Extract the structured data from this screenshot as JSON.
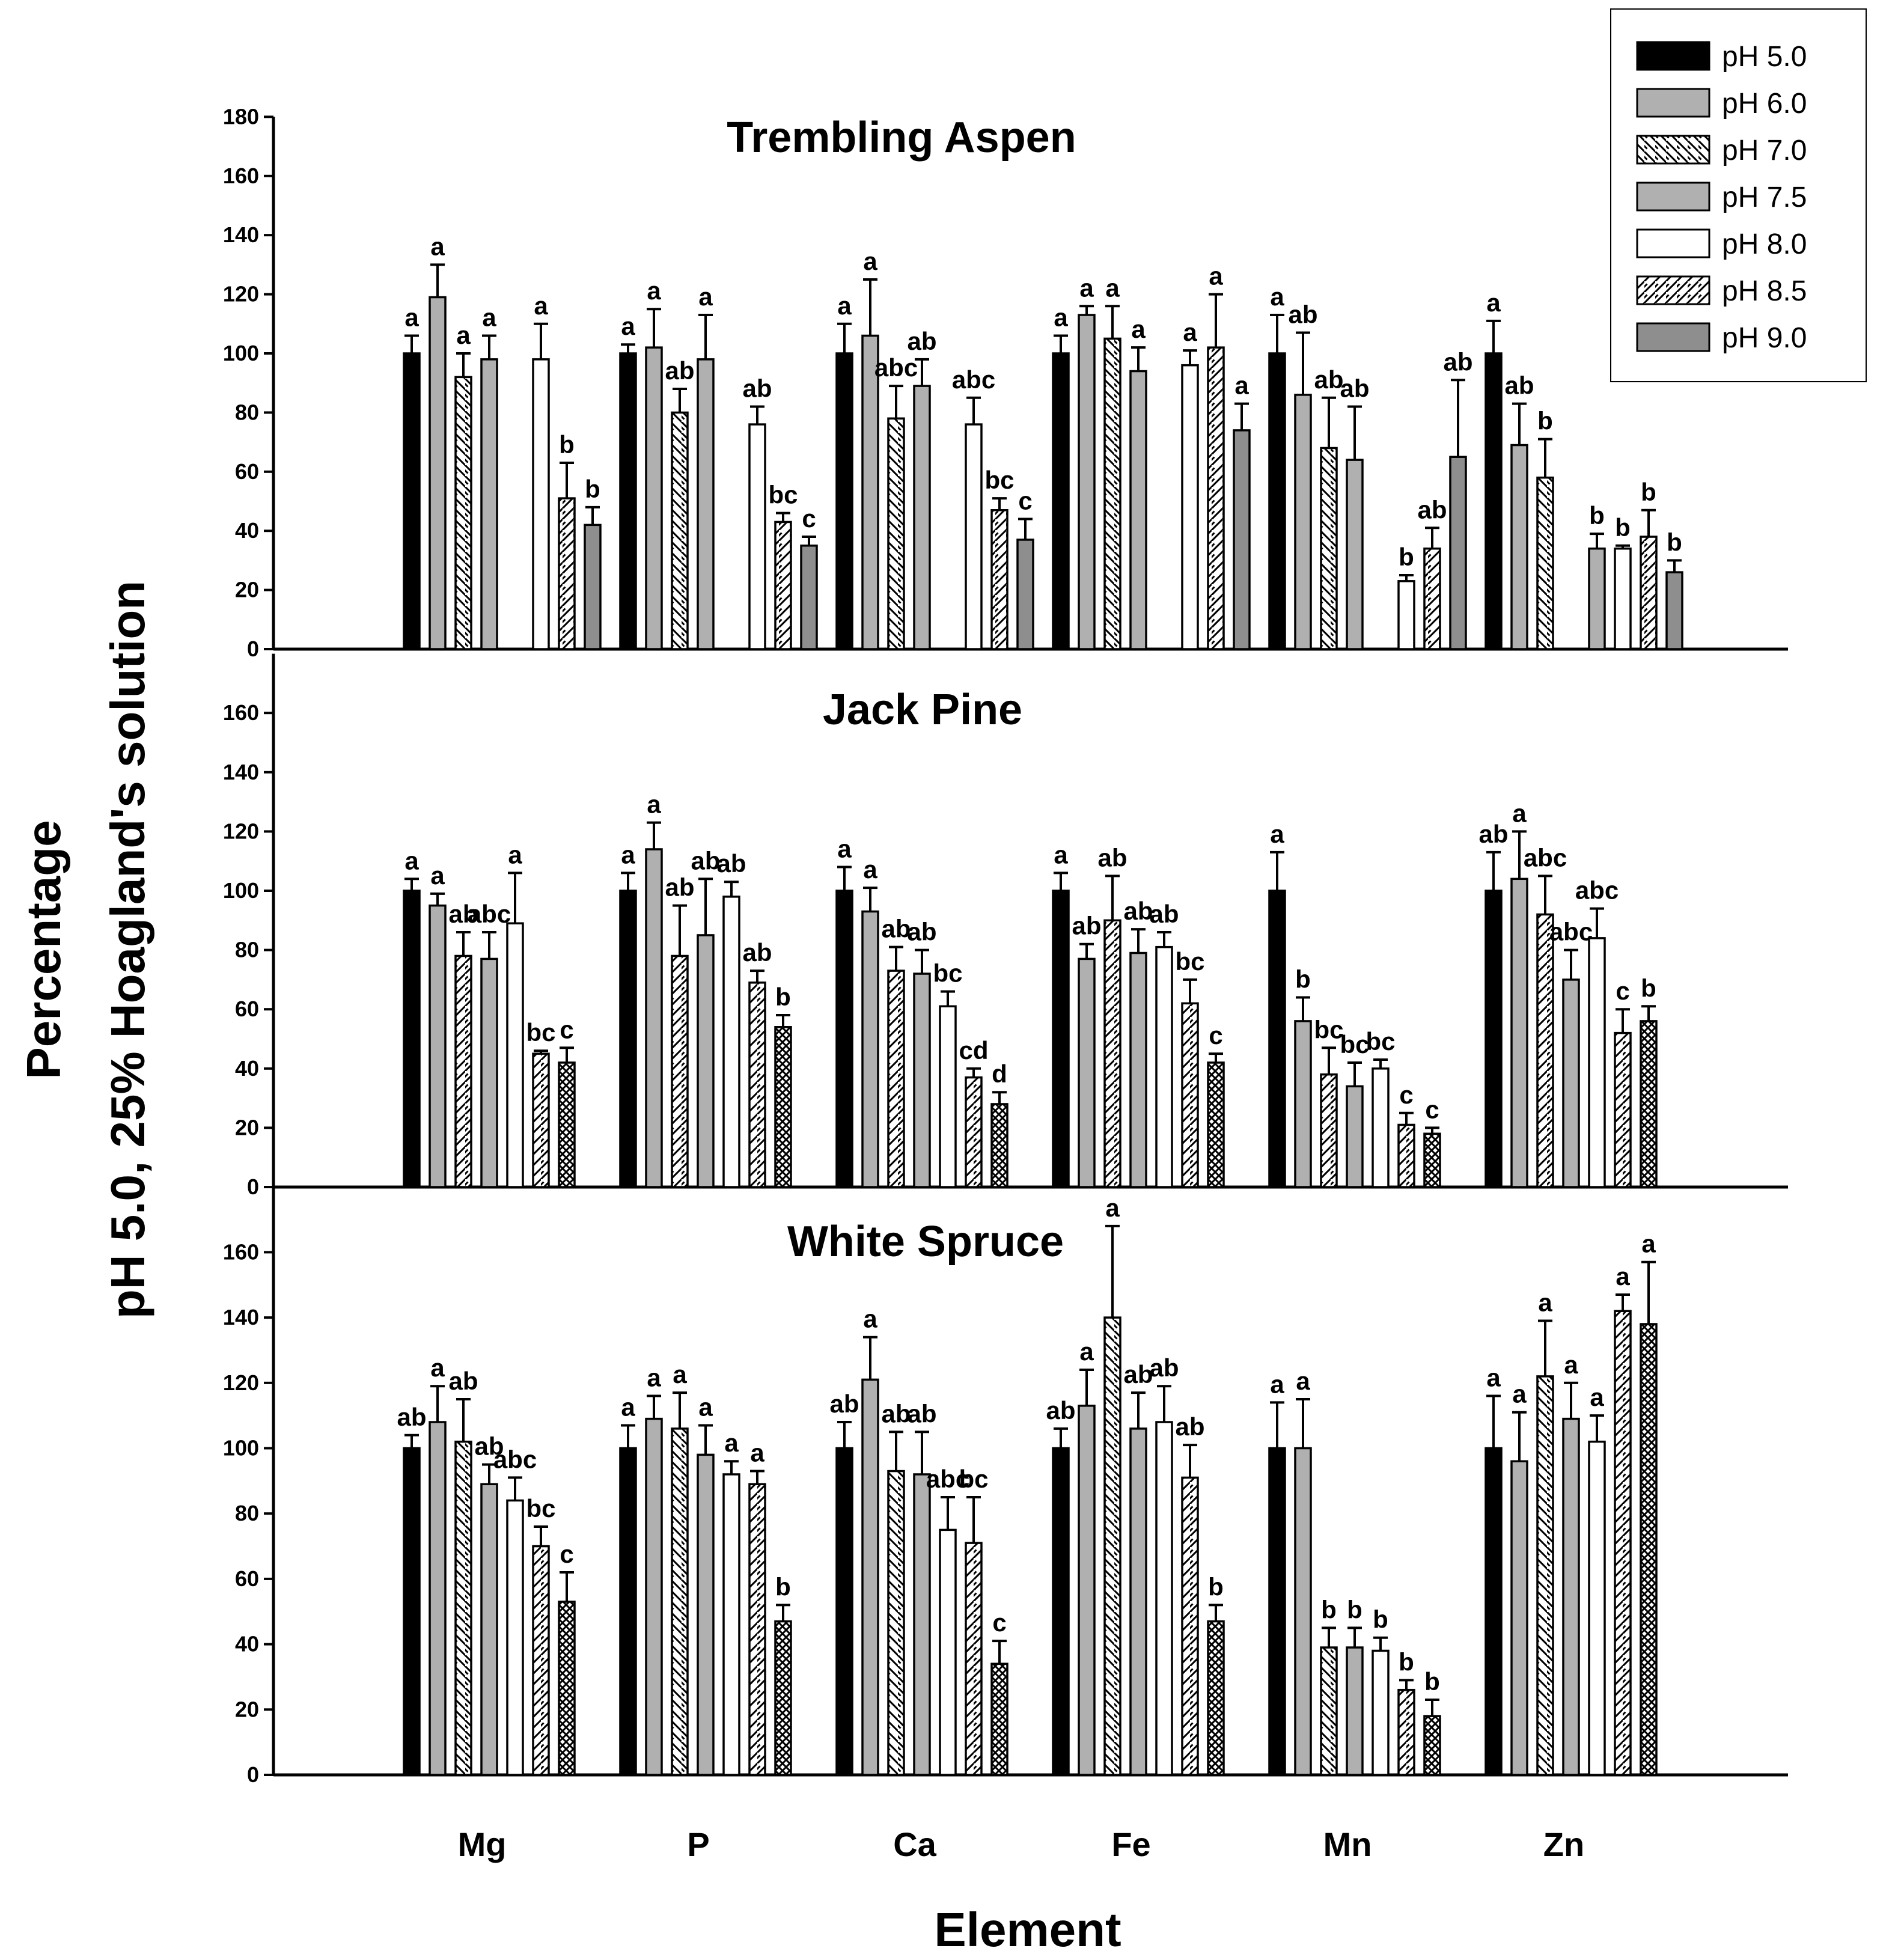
{
  "chart_data": {
    "type": "bar",
    "xlabel": "Element",
    "ylabel_line1": "Percentage",
    "ylabel_line2": "pH 5.0, 25% Hoagland's solution",
    "categories": [
      "Mg",
      "P",
      "Ca",
      "Fe",
      "Mn",
      "Zn"
    ],
    "legend": {
      "position": "top-right",
      "entries": [
        {
          "label": "pH 5.0",
          "pattern": "solid-black"
        },
        {
          "label": "pH 6.0",
          "pattern": "solid-gray"
        },
        {
          "label": "pH 7.0",
          "pattern": "back-diagonal"
        },
        {
          "label": "pH 7.5",
          "pattern": "solid-gray"
        },
        {
          "label": "pH 8.0",
          "pattern": "white"
        },
        {
          "label": "pH 8.5",
          "pattern": "forward-diagonal"
        },
        {
          "label": "pH 9.0",
          "pattern": "dark-gray"
        }
      ]
    },
    "panels": [
      {
        "title": "Trembling Aspen",
        "ylim": [
          0,
          180
        ],
        "yticks": [
          0,
          20,
          40,
          60,
          80,
          100,
          120,
          140,
          160,
          180
        ],
        "series": [
          {
            "name": "pH 5.0",
            "pattern": "solid-black",
            "values": [
              100,
              100,
              100,
              100,
              100,
              100
            ],
            "errors": [
              6,
              3,
              10,
              6,
              13,
              11
            ],
            "letters": [
              "a",
              "a",
              "a",
              "a",
              "a",
              "a"
            ]
          },
          {
            "name": "pH 6.0",
            "pattern": "solid-gray",
            "values": [
              119,
              102,
              106,
              113,
              86,
              69
            ],
            "errors": [
              11,
              13,
              19,
              3,
              21,
              14
            ],
            "letters": [
              "a",
              "a",
              "a",
              "a",
              "ab",
              "ab"
            ]
          },
          {
            "name": "pH 7.0",
            "pattern": "back-diagonal",
            "values": [
              92,
              80,
              78,
              105,
              68,
              58
            ],
            "errors": [
              8,
              8,
              11,
              11,
              17,
              13
            ],
            "letters": [
              "a",
              "ab",
              "abc",
              "a",
              "ab",
              "b"
            ]
          },
          {
            "name": "pH 7.5",
            "pattern": "solid-gray",
            "values": [
              98,
              98,
              89,
              94,
              64,
              null
            ],
            "errors": [
              8,
              15,
              9,
              8,
              18,
              0
            ],
            "letters": [
              "a",
              "a",
              "ab",
              "a",
              "ab",
              ""
            ]
          },
          {
            "name": "pH 7.5 (b)",
            "pattern": "solid-gray",
            "values": [
              null,
              null,
              null,
              null,
              null,
              34
            ],
            "errors": [
              0,
              0,
              0,
              0,
              0,
              5
            ],
            "letters": [
              "",
              "",
              "",
              "",
              "",
              "b"
            ]
          },
          {
            "name": "pH 8.0",
            "pattern": "white",
            "values": [
              98,
              76,
              76,
              96,
              23,
              34
            ],
            "errors": [
              12,
              6,
              9,
              5,
              2,
              1
            ],
            "letters": [
              "a",
              "ab",
              "abc",
              "a",
              "b",
              "b"
            ]
          },
          {
            "name": "pH 8.5",
            "pattern": "forward-diagonal",
            "values": [
              51,
              43,
              47,
              102,
              34,
              38
            ],
            "errors": [
              12,
              3,
              4,
              18,
              7,
              9
            ],
            "letters": [
              "b",
              "bc",
              "bc",
              "a",
              "ab",
              "b"
            ]
          },
          {
            "name": "pH 9.0",
            "pattern": "dark-gray",
            "values": [
              42,
              35,
              37,
              74,
              65,
              26
            ],
            "errors": [
              6,
              3,
              7,
              9,
              26,
              4
            ],
            "letters": [
              "b",
              "c",
              "c",
              "a",
              "ab",
              "b"
            ]
          }
        ]
      },
      {
        "title": "Jack Pine",
        "ylim": [
          0,
          180
        ],
        "yticks": [
          0,
          20,
          40,
          60,
          80,
          100,
          120,
          140,
          160
        ],
        "series": [
          {
            "name": "pH 5.0",
            "pattern": "solid-black",
            "values": [
              100,
              100,
              100,
              100,
              100,
              100
            ],
            "errors": [
              4,
              6,
              8,
              6,
              13,
              13
            ],
            "letters": [
              "a",
              "a",
              "a",
              "a",
              "a",
              "ab"
            ]
          },
          {
            "name": "pH 6.0",
            "pattern": "solid-gray",
            "values": [
              95,
              114,
              93,
              77,
              56,
              104
            ],
            "errors": [
              4,
              9,
              8,
              5,
              8,
              16
            ],
            "letters": [
              "a",
              "a",
              "a",
              "ab",
              "b",
              "a"
            ]
          },
          {
            "name": "pH 7.0",
            "pattern": "forward-diagonal",
            "values": [
              78,
              78,
              73,
              90,
              38,
              92
            ],
            "errors": [
              8,
              17,
              8,
              15,
              9,
              13
            ],
            "letters": [
              "ab",
              "ab",
              "ab",
              "ab",
              "bc",
              "abc"
            ]
          },
          {
            "name": "pH 7.5",
            "pattern": "solid-gray",
            "values": [
              77,
              85,
              72,
              79,
              34,
              70
            ],
            "errors": [
              9,
              19,
              8,
              8,
              8,
              10
            ],
            "letters": [
              "abc",
              "ab",
              "ab",
              "ab",
              "bc",
              "abc"
            ]
          },
          {
            "name": "pH 8.0",
            "pattern": "white",
            "values": [
              89,
              98,
              61,
              81,
              40,
              84
            ],
            "errors": [
              17,
              5,
              5,
              5,
              3,
              10
            ],
            "letters": [
              "a",
              "ab",
              "bc",
              "ab",
              "bc",
              "abc"
            ]
          },
          {
            "name": "pH 8.5",
            "pattern": "forward-diagonal",
            "values": [
              45,
              69,
              37,
              62,
              21,
              52
            ],
            "errors": [
              1,
              4,
              3,
              8,
              4,
              8
            ],
            "letters": [
              "bc",
              "ab",
              "cd",
              "bc",
              "c",
              "c"
            ]
          },
          {
            "name": "pH 9.0",
            "pattern": "crosshatch",
            "values": [
              42,
              54,
              28,
              42,
              18,
              56
            ],
            "errors": [
              5,
              4,
              4,
              3,
              2,
              5
            ],
            "letters": [
              "c",
              "b",
              "d",
              "c",
              "c",
              "b"
            ]
          }
        ]
      },
      {
        "title": "White Spruce",
        "ylim": [
          0,
          180
        ],
        "yticks": [
          0,
          20,
          40,
          60,
          80,
          100,
          120,
          140,
          160
        ],
        "series": [
          {
            "name": "pH 5.0",
            "pattern": "solid-black",
            "values": [
              100,
              100,
              100,
              100,
              100,
              100
            ],
            "errors": [
              4,
              7,
              8,
              6,
              14,
              16
            ],
            "letters": [
              "ab",
              "a",
              "ab",
              "ab",
              "a",
              "a"
            ]
          },
          {
            "name": "pH 6.0",
            "pattern": "solid-gray",
            "values": [
              108,
              109,
              121,
              113,
              100,
              96
            ],
            "errors": [
              11,
              7,
              13,
              11,
              15,
              15
            ],
            "letters": [
              "a",
              "a",
              "a",
              "a",
              "a",
              "a"
            ]
          },
          {
            "name": "pH 7.0",
            "pattern": "back-diagonal",
            "values": [
              102,
              106,
              93,
              140,
              39,
              122
            ],
            "errors": [
              13,
              11,
              12,
              28,
              6,
              17
            ],
            "letters": [
              "ab",
              "a",
              "ab",
              "a",
              "b",
              "a"
            ]
          },
          {
            "name": "pH 7.5",
            "pattern": "solid-gray",
            "values": [
              89,
              98,
              92,
              106,
              39,
              109
            ],
            "errors": [
              6,
              9,
              13,
              11,
              6,
              11
            ],
            "letters": [
              "ab",
              "a",
              "ab",
              "ab",
              "b",
              "a"
            ]
          },
          {
            "name": "pH 8.0",
            "pattern": "white",
            "values": [
              84,
              92,
              75,
              108,
              38,
              102
            ],
            "errors": [
              7,
              4,
              10,
              11,
              4,
              8
            ],
            "letters": [
              "abc",
              "a",
              "abc",
              "ab",
              "b",
              "a"
            ]
          },
          {
            "name": "pH 8.5",
            "pattern": "forward-diagonal",
            "values": [
              70,
              89,
              71,
              91,
              26,
              142
            ],
            "errors": [
              6,
              4,
              14,
              10,
              3,
              5
            ],
            "letters": [
              "bc",
              "a",
              "bc",
              "ab",
              "b",
              "a"
            ]
          },
          {
            "name": "pH 9.0",
            "pattern": "crosshatch",
            "values": [
              53,
              47,
              34,
              47,
              18,
              138
            ],
            "errors": [
              9,
              5,
              7,
              5,
              5,
              19
            ],
            "letters": [
              "c",
              "b",
              "c",
              "b",
              "b",
              "a"
            ]
          }
        ]
      }
    ]
  }
}
